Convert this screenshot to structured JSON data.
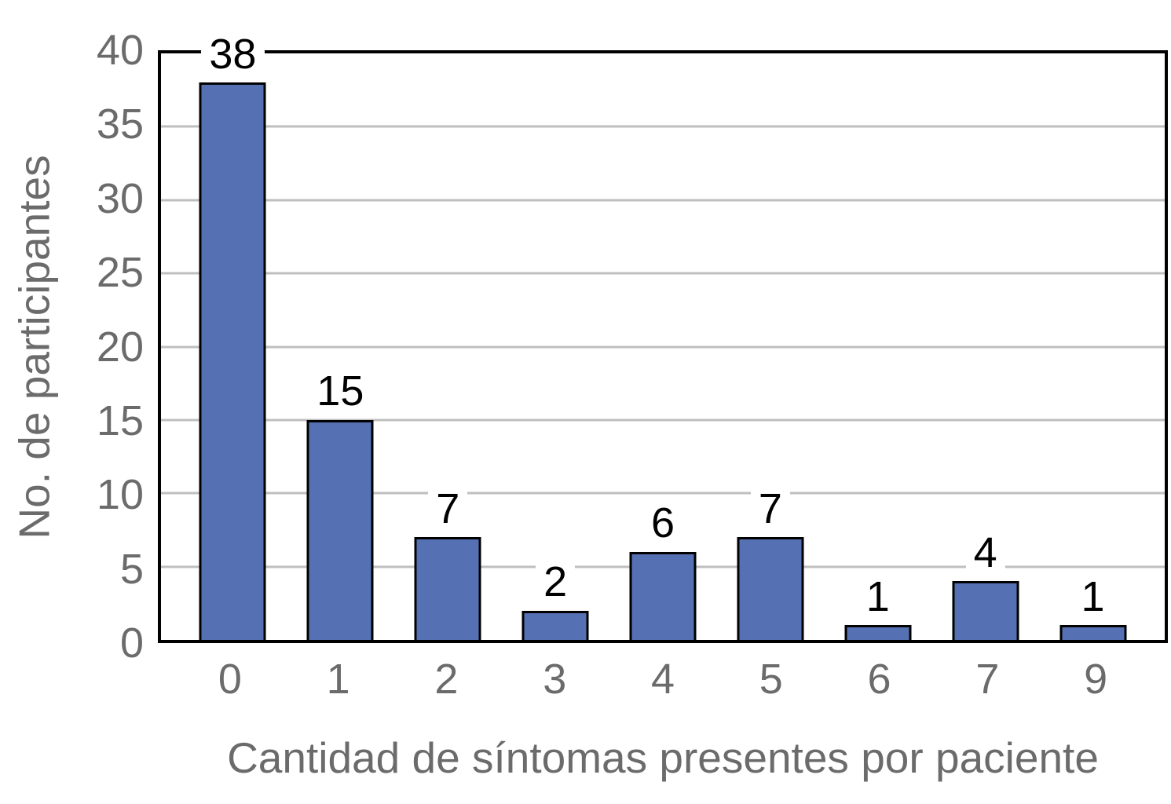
{
  "chart_data": {
    "type": "bar",
    "categories": [
      "0",
      "1",
      "2",
      "3",
      "4",
      "5",
      "6",
      "7",
      "9"
    ],
    "values": [
      38,
      15,
      7,
      2,
      6,
      7,
      1,
      4,
      1
    ],
    "data_labels": [
      "38",
      "15",
      "7",
      "2",
      "6",
      "7",
      "1",
      "4",
      "1"
    ],
    "title": "",
    "xlabel": "Cantidad de síntomas presentes por paciente",
    "ylabel": "No. de participantes",
    "ylim": [
      0,
      40
    ],
    "yticks": [
      0,
      5,
      10,
      15,
      20,
      25,
      30,
      35,
      40
    ],
    "grid": "horizontal",
    "legend_position": "none",
    "colors": {
      "bar_fill": "#5671B3",
      "bar_border": "#000000",
      "plot_border": "#000000",
      "gridline": "#BFBFBF",
      "axis_text": "#6B6B6B",
      "data_label": "#000000",
      "background": "#FFFFFF"
    }
  }
}
